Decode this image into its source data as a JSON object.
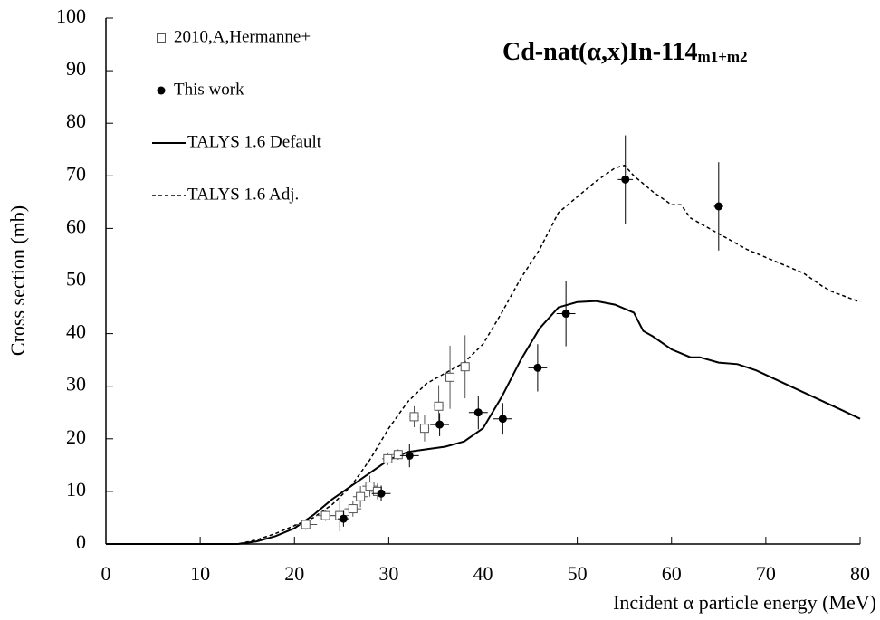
{
  "chart_data": {
    "type": "line",
    "title": "Cd-nat(α,x)In-114",
    "title_subscript": "m1+m2",
    "x_label": "Incident α particle energy (MeV)",
    "y_label": "Cross section (mb)",
    "xlim": [
      0,
      80
    ],
    "ylim": [
      0,
      100
    ],
    "xticks": [
      0,
      10,
      20,
      30,
      40,
      50,
      60,
      70,
      80
    ],
    "yticks": [
      0,
      10,
      20,
      30,
      40,
      50,
      60,
      70,
      80,
      90,
      100
    ],
    "grid": false,
    "legend": "upper left",
    "series": [
      {
        "name": "2010,A,Hermanne+",
        "color": "#555555",
        "marker": "open-square",
        "x": [
          21.2,
          23.3,
          24.8,
          26.2,
          27.0,
          28.0,
          28.8,
          29.9,
          31.0,
          32.7,
          33.8,
          35.3,
          36.5,
          38.1
        ],
        "values": [
          3.7,
          5.4,
          5.4,
          6.7,
          9.0,
          11.0,
          10.0,
          16.2,
          17.0,
          24.2,
          22.0,
          26.2,
          31.7,
          33.7
        ],
        "x_errors": [
          1.2,
          1.0,
          1.0,
          0.9,
          0.8,
          0.8,
          0.7,
          0.6,
          0.6,
          0.5,
          0.5,
          0.5,
          0.4,
          0.4
        ],
        "errors": [
          1.0,
          1.0,
          3.0,
          1.5,
          2.0,
          2.0,
          1.5,
          1.2,
          1.0,
          2.0,
          2.5,
          4.0,
          6.0,
          6.0
        ]
      },
      {
        "name": "This work",
        "color": "#000000",
        "marker": "filled-circle",
        "x": [
          25.2,
          29.2,
          32.2,
          35.4,
          39.5,
          42.1,
          45.8,
          48.8,
          55.1,
          65.0
        ],
        "values": [
          4.8,
          9.6,
          16.8,
          22.7,
          25.0,
          23.8,
          33.5,
          43.8,
          69.3,
          64.2
        ],
        "x_errors": [
          0.6,
          1.0,
          1.0,
          1.0,
          1.0,
          1.0,
          1.0,
          1.0,
          0.8,
          0.5
        ],
        "errors": [
          1.5,
          1.5,
          2.2,
          2.2,
          3.2,
          3.0,
          4.5,
          6.2,
          8.4,
          8.4
        ]
      },
      {
        "name": "TALYS 1.6 Default",
        "color": "#000000",
        "dash": "solid",
        "x": [
          0,
          14,
          16,
          18,
          20,
          22,
          24,
          26,
          28,
          30,
          32,
          34,
          36,
          38,
          40,
          42,
          44,
          46,
          48,
          50,
          52,
          54,
          56,
          57,
          58,
          60,
          62,
          63,
          65,
          67,
          69,
          72,
          75,
          78,
          80
        ],
        "values": [
          0,
          0,
          0.5,
          1.5,
          3,
          5.5,
          8.5,
          11,
          13.5,
          16,
          17.5,
          18,
          18.5,
          19.5,
          22,
          28,
          35,
          41,
          45,
          46,
          46.2,
          45.5,
          44,
          40.5,
          39.5,
          37,
          35.5,
          35.5,
          34.5,
          34.2,
          33,
          30.5,
          28,
          25.5,
          23.8
        ]
      },
      {
        "name": "TALYS 1.6 Adj.",
        "color": "#000000",
        "dash": "dashed",
        "x": [
          0,
          14,
          16,
          18,
          20,
          22,
          24,
          26,
          28,
          30,
          32,
          34,
          36,
          38,
          40,
          42,
          44,
          46,
          48,
          50,
          52,
          54,
          55,
          56,
          58,
          60,
          61,
          62,
          64,
          66,
          68,
          70,
          72,
          74,
          76,
          77,
          80
        ],
        "values": [
          0,
          0,
          0.8,
          2,
          3.5,
          5,
          7.5,
          11,
          16,
          22,
          27,
          30.5,
          32.5,
          34.5,
          38,
          44,
          50.5,
          56,
          63,
          66,
          69,
          71.5,
          72,
          70,
          67,
          64.5,
          64.5,
          62,
          60,
          58,
          56,
          54.5,
          53,
          51.5,
          49,
          48,
          46
        ]
      }
    ]
  }
}
